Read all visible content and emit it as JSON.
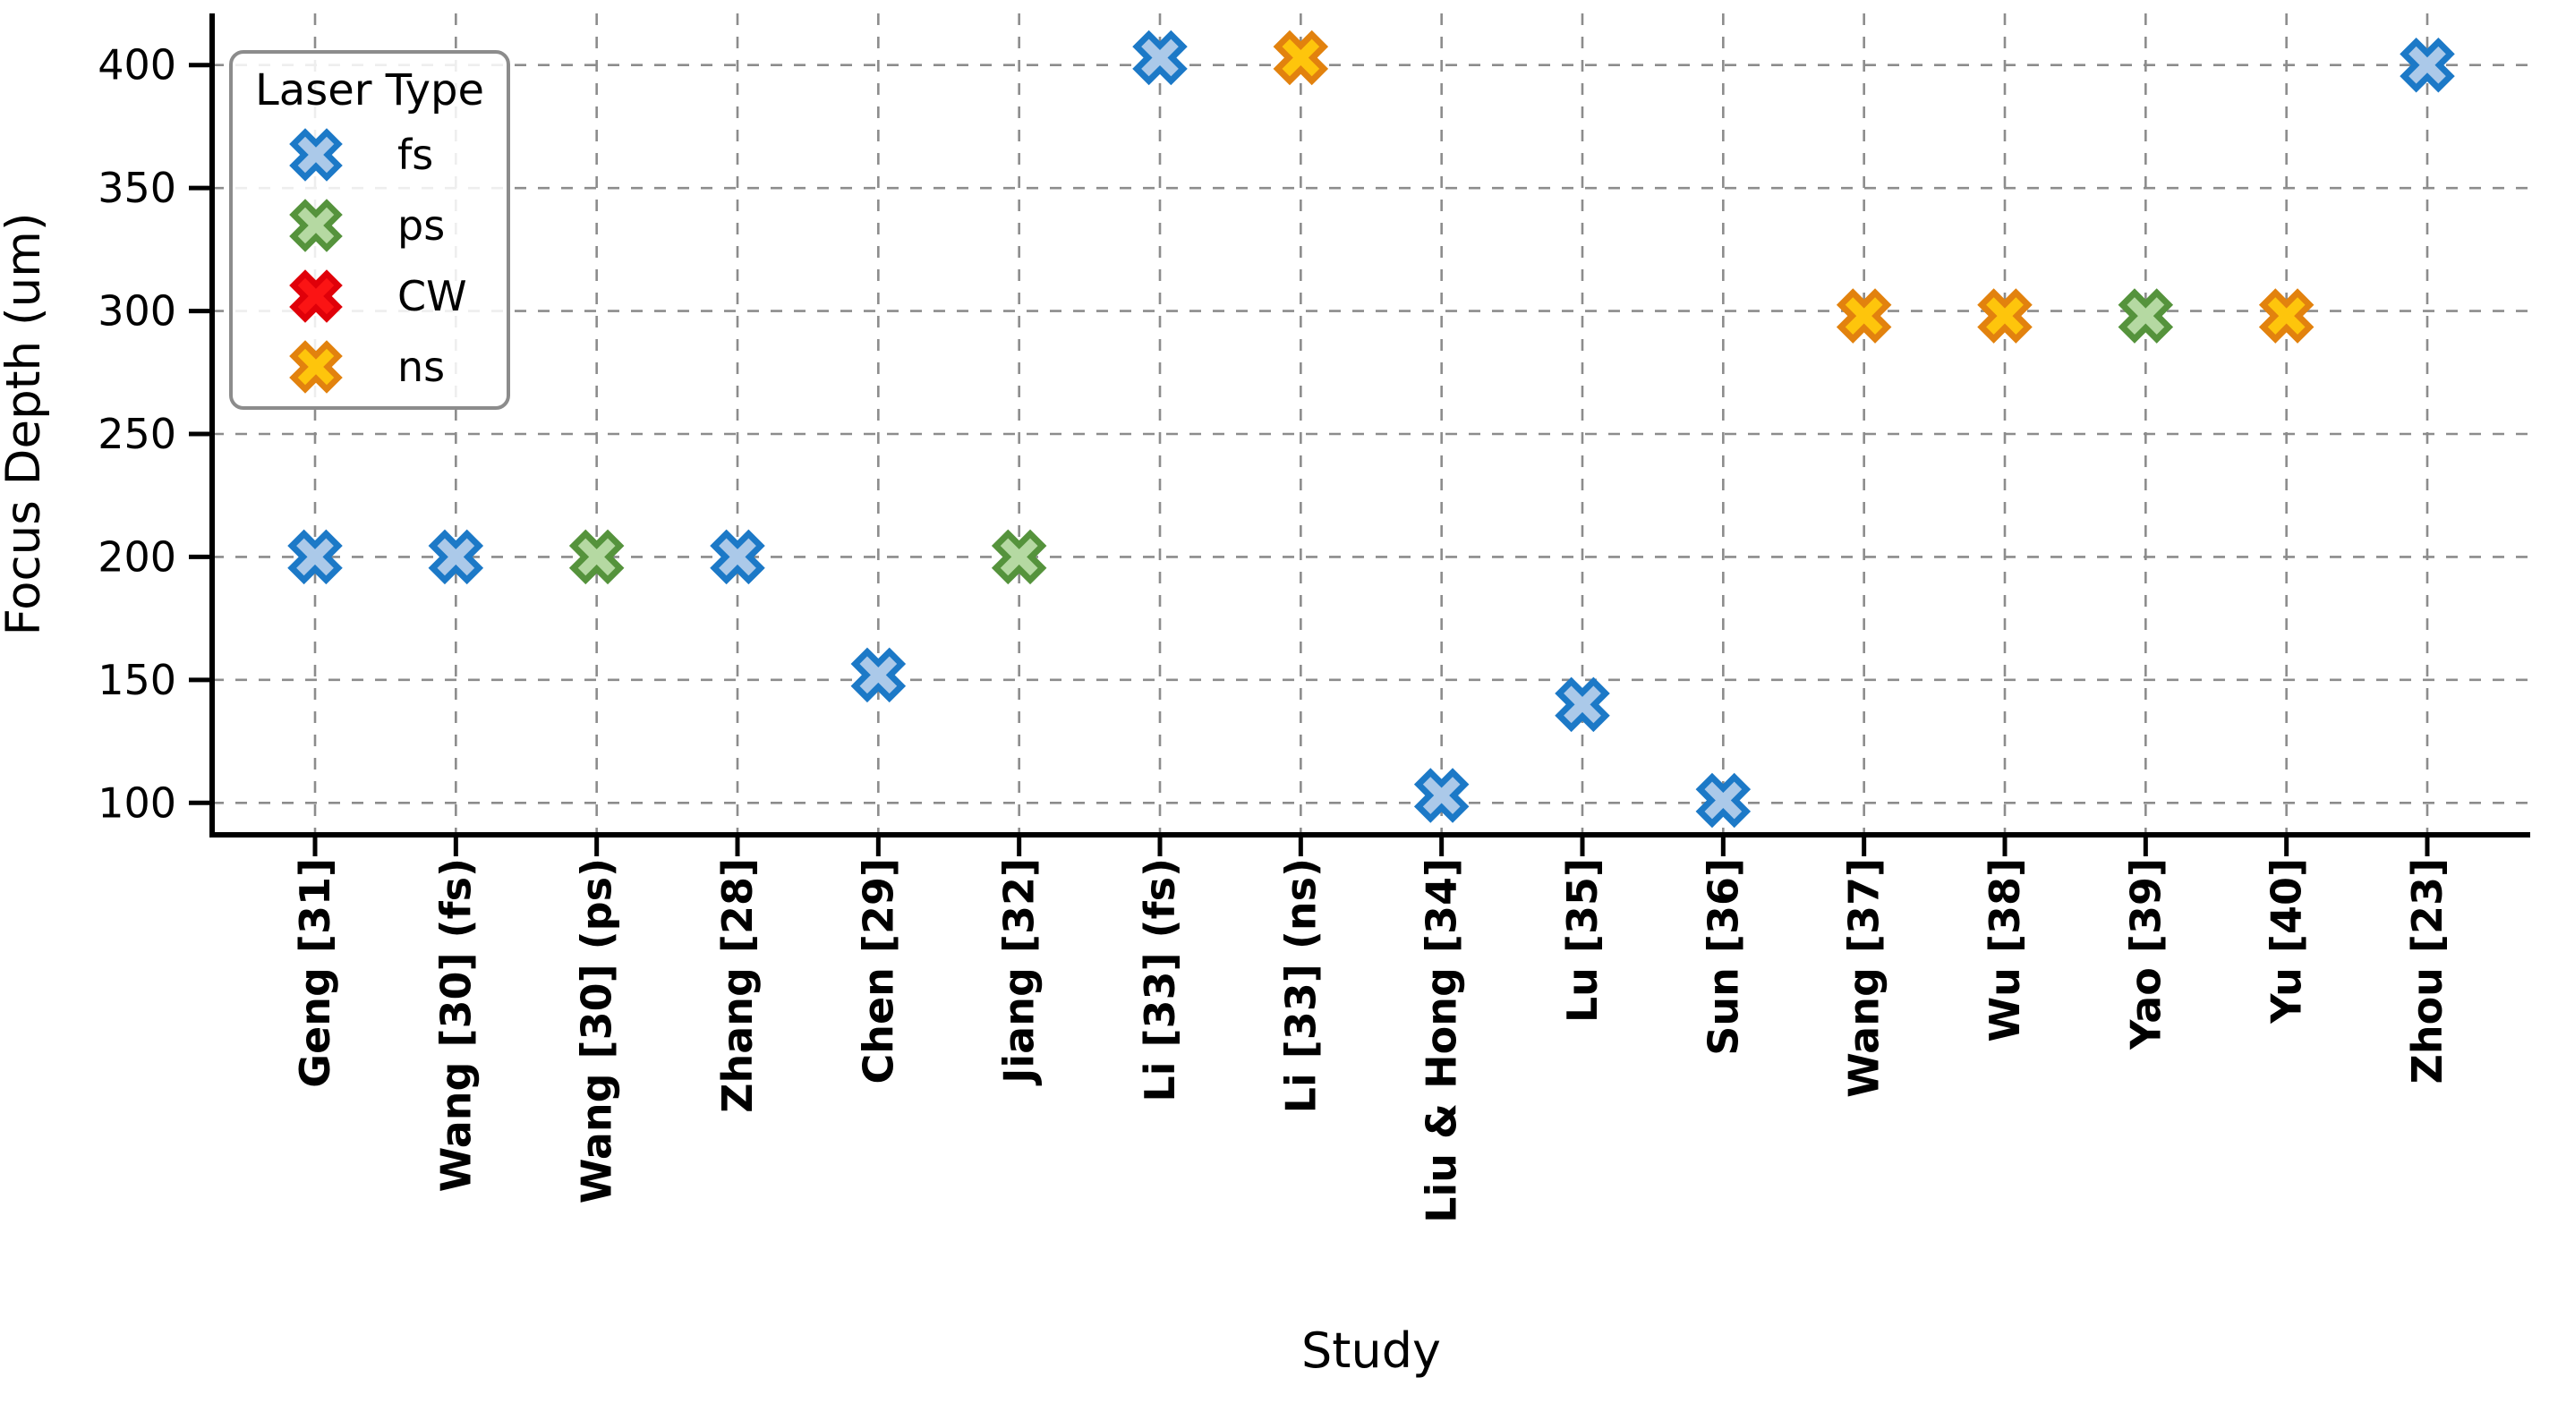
{
  "figure": {
    "background": "#ffffff"
  },
  "axes": {
    "y_label": "Focus Depth (um)",
    "x_label": "Study",
    "y_tick_labels": [
      "100",
      "150",
      "200",
      "250",
      "300",
      "350",
      "400"
    ]
  },
  "legend": {
    "title": "Laser Type",
    "items": [
      {
        "label": "fs",
        "type": "fs"
      },
      {
        "label": "ps",
        "type": "ps"
      },
      {
        "label": "CW",
        "type": "CW"
      },
      {
        "label": "ns",
        "type": "ns"
      }
    ]
  },
  "colors": {
    "fs": {
      "edge": "#1c79c7",
      "face": "#abc9e9"
    },
    "ps": {
      "edge": "#55933c",
      "face": "#b5d9a2"
    },
    "CW": {
      "edge": "#e00009",
      "face": "#fb1414"
    },
    "ns": {
      "edge": "#e2820e",
      "face": "#fec50c"
    },
    "grid": "#8c8c8c",
    "axis": "#000000"
  },
  "chart_data": {
    "type": "scatter",
    "title": "",
    "xlabel": "Study",
    "ylabel": "Focus Depth (um)",
    "categories": [
      "Geng [31]",
      "Wang [30] (fs)",
      "Wang [30] (ps)",
      "Zhang [28]",
      "Chen [29]",
      "Jiang [32]",
      "Li [33] (fs)",
      "Li [33] (ns)",
      "Liu & Hong [34]",
      "Lu [35]",
      "Sun [36]",
      "Wang [37]",
      "Wu [38]",
      "Yao [39]",
      "Yu [40]",
      "Zhou [23]"
    ],
    "points": [
      {
        "study": "Geng [31]",
        "laser_type": "fs",
        "focus_depth_um": 200
      },
      {
        "study": "Wang [30] (fs)",
        "laser_type": "fs",
        "focus_depth_um": 200
      },
      {
        "study": "Wang [30] (ps)",
        "laser_type": "ps",
        "focus_depth_um": 200
      },
      {
        "study": "Zhang [28]",
        "laser_type": "fs",
        "focus_depth_um": 200
      },
      {
        "study": "Chen [29]",
        "laser_type": "fs",
        "focus_depth_um": 152
      },
      {
        "study": "Jiang [32]",
        "laser_type": "ps",
        "focus_depth_um": 200
      },
      {
        "study": "Li [33] (fs)",
        "laser_type": "fs",
        "focus_depth_um": 403
      },
      {
        "study": "Li [33] (ns)",
        "laser_type": "ns",
        "focus_depth_um": 403
      },
      {
        "study": "Liu & Hong [34]",
        "laser_type": "fs",
        "focus_depth_um": 103
      },
      {
        "study": "Lu [35]",
        "laser_type": "fs",
        "focus_depth_um": 140
      },
      {
        "study": "Sun [36]",
        "laser_type": "fs",
        "focus_depth_um": 101
      },
      {
        "study": "Wang [37]",
        "laser_type": "ns",
        "focus_depth_um": 298
      },
      {
        "study": "Wu [38]",
        "laser_type": "ns",
        "focus_depth_um": 298
      },
      {
        "study": "Yao [39]",
        "laser_type": "ps",
        "focus_depth_um": 298
      },
      {
        "study": "Yu [40]",
        "laser_type": "ns",
        "focus_depth_um": 298
      },
      {
        "study": "Zhou [23]",
        "laser_type": "fs",
        "focus_depth_um": 400
      }
    ],
    "y_ticks": [
      100,
      150,
      200,
      250,
      300,
      350,
      400
    ],
    "ylim": [
      87,
      421
    ],
    "grid": "dashed",
    "legend_position": "upper left",
    "legend_title": "Laser Type",
    "legend_entries": [
      "fs",
      "ps",
      "CW",
      "ns"
    ]
  }
}
